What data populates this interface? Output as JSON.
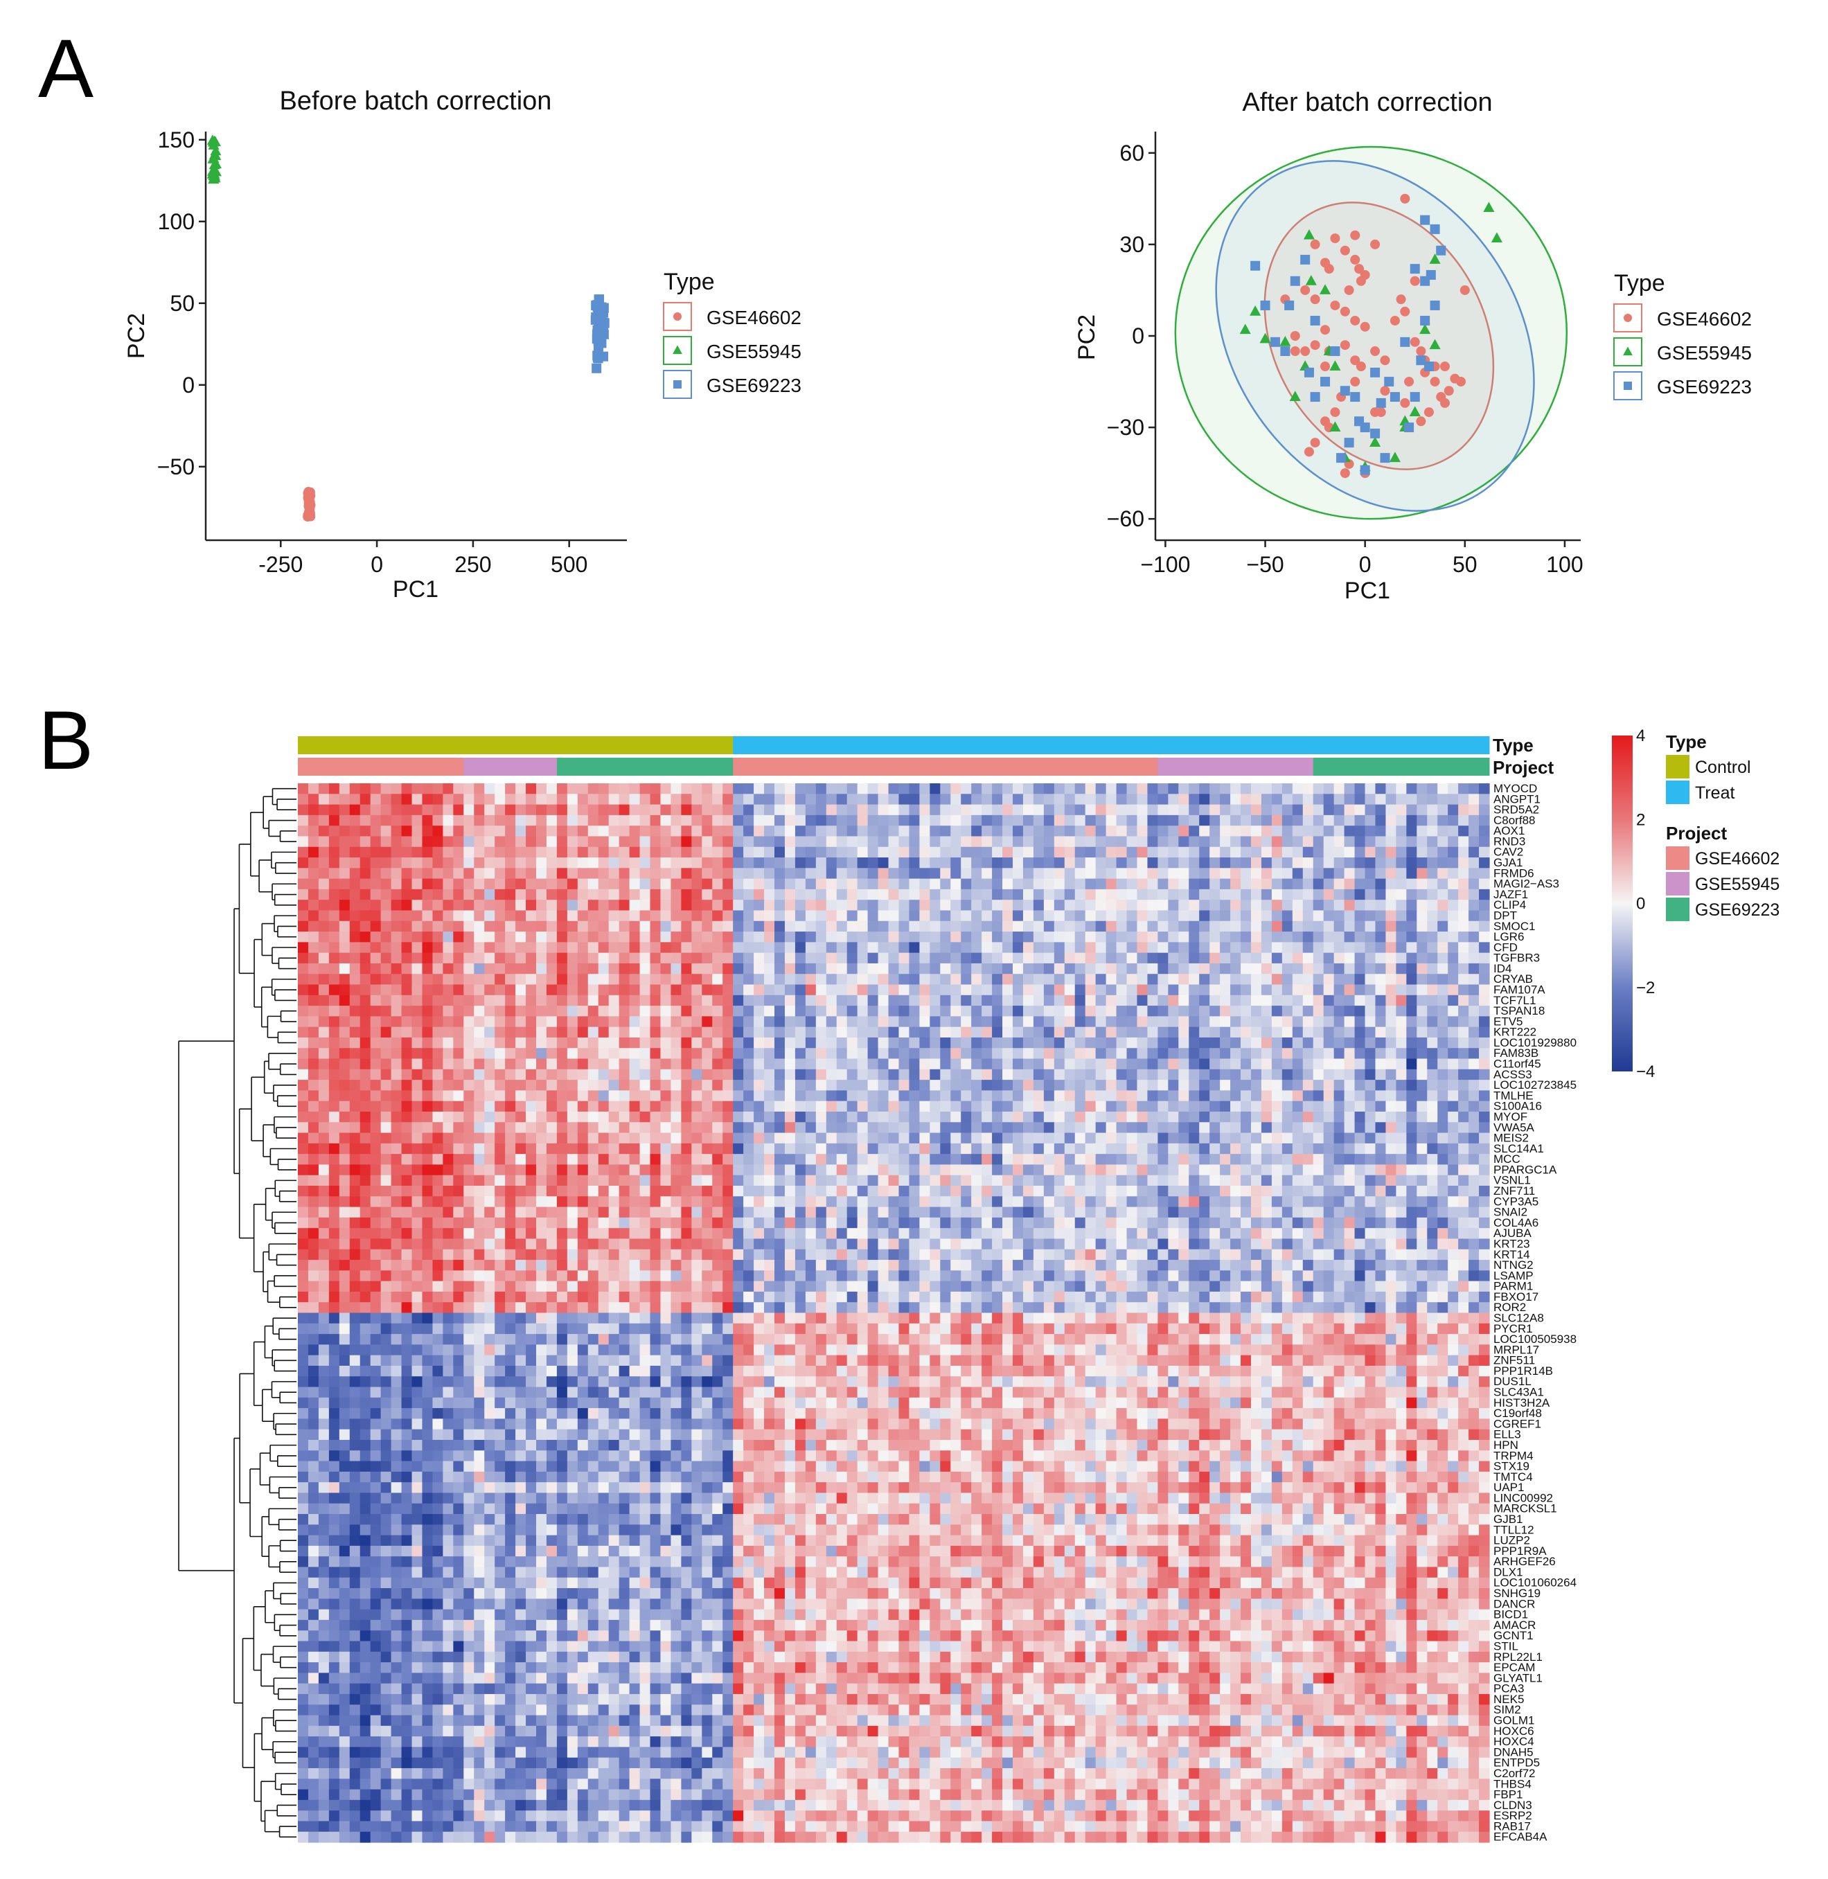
{
  "panels": {
    "a": "A",
    "b": "B"
  },
  "legend_type_title": "Type",
  "datasets": [
    {
      "name": "GSE46602",
      "color": "#E8796F",
      "shape": "circle"
    },
    {
      "name": "GSE55945",
      "color": "#2EAE3A",
      "shape": "triangle"
    },
    {
      "name": "GSE69223",
      "color": "#5B8FD0",
      "shape": "square"
    }
  ],
  "chart_data": [
    {
      "type": "scatter",
      "title": "Before batch correction",
      "xlabel": "PC1",
      "ylabel": "PC2",
      "xlim": [
        -445,
        650
      ],
      "ylim": [
        -95,
        155
      ],
      "xticks": [
        -250,
        0,
        250,
        500
      ],
      "xtick_labels": [
        "-250",
        "0",
        "250",
        "500"
      ],
      "yticks": [
        -50,
        0,
        50,
        100,
        150
      ],
      "ytick_labels": [
        "−50",
        "0",
        "50",
        "100",
        "150"
      ],
      "series": [
        {
          "name": "GSE46602",
          "x_range": [
            -180,
            -172
          ],
          "y_range": [
            -82,
            -65
          ],
          "n": 36
        },
        {
          "name": "GSE55945",
          "x_range": [
            -428,
            -418
          ],
          "y_range": [
            120,
            150
          ],
          "n": 21
        },
        {
          "name": "GSE69223",
          "x_range": [
            568,
            592
          ],
          "y_range": [
            10,
            53
          ],
          "n": 40
        }
      ]
    },
    {
      "type": "scatter",
      "title": "After batch correction",
      "xlabel": "PC1",
      "ylabel": "PC2",
      "xlim": [
        -105,
        108
      ],
      "ylim": [
        -67,
        67
      ],
      "xticks": [
        -100,
        -50,
        0,
        50,
        100
      ],
      "xtick_labels": [
        "−100",
        "−50",
        "0",
        "50",
        "100"
      ],
      "yticks": [
        -60,
        -30,
        0,
        30,
        60
      ],
      "ytick_labels": [
        "−60",
        "−30",
        "0",
        "30",
        "60"
      ],
      "series": [
        {
          "name": "GSE46602",
          "points": [
            [
              20,
              45
            ],
            [
              -25,
              30
            ],
            [
              -15,
              32
            ],
            [
              -10,
              28
            ],
            [
              -5,
              33
            ],
            [
              5,
              30
            ],
            [
              -18,
              22
            ],
            [
              -20,
              24
            ],
            [
              -5,
              25
            ],
            [
              -2,
              18
            ],
            [
              -8,
              15
            ],
            [
              0,
              20
            ],
            [
              -30,
              15
            ],
            [
              -25,
              12
            ],
            [
              -40,
              12
            ],
            [
              -15,
              10
            ],
            [
              -10,
              8
            ],
            [
              -5,
              5
            ],
            [
              0,
              3
            ],
            [
              -20,
              2
            ],
            [
              -25,
              -3
            ],
            [
              -30,
              -5
            ],
            [
              -35,
              0
            ],
            [
              -18,
              -5
            ],
            [
              -10,
              -3
            ],
            [
              -5,
              -8
            ],
            [
              -2,
              -10
            ],
            [
              5,
              -5
            ],
            [
              10,
              -8
            ],
            [
              15,
              5
            ],
            [
              20,
              8
            ],
            [
              25,
              -2
            ],
            [
              28,
              -5
            ],
            [
              30,
              -12
            ],
            [
              35,
              -15
            ],
            [
              40,
              -10
            ],
            [
              42,
              -18
            ],
            [
              45,
              -14
            ],
            [
              38,
              -20
            ],
            [
              32,
              -25
            ],
            [
              28,
              -28
            ],
            [
              20,
              -22
            ],
            [
              15,
              -20
            ],
            [
              10,
              -18
            ],
            [
              5,
              -25
            ],
            [
              -5,
              -15
            ],
            [
              -12,
              -20
            ],
            [
              -15,
              -25
            ],
            [
              -20,
              -28
            ],
            [
              -25,
              -35
            ],
            [
              -28,
              -38
            ],
            [
              -18,
              -30
            ],
            [
              0,
              -30
            ],
            [
              -10,
              -45
            ],
            [
              0,
              -45
            ],
            [
              -8,
              -42
            ],
            [
              50,
              15
            ],
            [
              48,
              -15
            ],
            [
              40,
              -22
            ],
            [
              35,
              -10
            ],
            [
              25,
              18
            ],
            [
              18,
              12
            ],
            [
              -35,
              -5
            ],
            [
              -20,
              -10
            ],
            [
              -3,
              22
            ],
            [
              8,
              -25
            ],
            [
              22,
              -15
            ],
            [
              30,
              -8
            ]
          ]
        },
        {
          "name": "GSE55945",
          "points": [
            [
              -60,
              2
            ],
            [
              -55,
              8
            ],
            [
              -50,
              -1
            ],
            [
              -28,
              33
            ],
            [
              -27,
              18
            ],
            [
              -20,
              15
            ],
            [
              -40,
              -2
            ],
            [
              -35,
              -20
            ],
            [
              -15,
              -30
            ],
            [
              5,
              -35
            ],
            [
              -10,
              -40
            ],
            [
              0,
              -43
            ],
            [
              15,
              -40
            ],
            [
              20,
              -30
            ],
            [
              25,
              -25
            ],
            [
              30,
              2
            ],
            [
              35,
              -3
            ],
            [
              62,
              42
            ],
            [
              66,
              32
            ],
            [
              35,
              25
            ],
            [
              -15,
              -10
            ],
            [
              -30,
              -10
            ],
            [
              -18,
              -5
            ],
            [
              20,
              -28
            ]
          ]
        },
        {
          "name": "GSE69223",
          "points": [
            [
              -55,
              23
            ],
            [
              -50,
              10
            ],
            [
              -45,
              -2
            ],
            [
              -40,
              -5
            ],
            [
              -38,
              10
            ],
            [
              -35,
              18
            ],
            [
              -30,
              25
            ],
            [
              -28,
              -12
            ],
            [
              -25,
              -20
            ],
            [
              -20,
              -15
            ],
            [
              -15,
              -5
            ],
            [
              -10,
              -18
            ],
            [
              -5,
              -20
            ],
            [
              -3,
              -28
            ],
            [
              0,
              -30
            ],
            [
              5,
              -32
            ],
            [
              8,
              -22
            ],
            [
              12,
              -15
            ],
            [
              10,
              -40
            ],
            [
              0,
              -44
            ],
            [
              25,
              -20
            ],
            [
              28,
              -8
            ],
            [
              30,
              5
            ],
            [
              32,
              -10
            ],
            [
              35,
              10
            ],
            [
              33,
              20
            ],
            [
              30,
              38
            ],
            [
              35,
              35
            ],
            [
              38,
              28
            ],
            [
              25,
              22
            ],
            [
              30,
              18
            ],
            [
              20,
              -2
            ],
            [
              15,
              -20
            ],
            [
              -8,
              -35
            ],
            [
              -12,
              -40
            ],
            [
              5,
              -12
            ],
            [
              -25,
              5
            ],
            [
              22,
              -30
            ]
          ]
        }
      ],
      "ellipses": [
        {
          "name": "GSE46602",
          "cx": 7,
          "cy": 0,
          "rx": 53,
          "ry": 46,
          "angle": -28
        },
        {
          "name": "GSE55945",
          "cx": 3,
          "cy": 1,
          "rx": 98,
          "ry": 61,
          "angle": 0
        },
        {
          "name": "GSE69223",
          "cx": 5,
          "cy": 0,
          "rx": 71,
          "ry": 62,
          "angle": -35
        }
      ]
    },
    {
      "type": "heatmap",
      "annotation_labels": {
        "type": "Type",
        "project": "Project"
      },
      "type_legend": [
        {
          "name": "Control",
          "color": "#B6BC0B"
        },
        {
          "name": "Treat",
          "color": "#2EBAF0"
        }
      ],
      "project_legend": [
        {
          "name": "GSE46602",
          "color": "#EC8A87"
        },
        {
          "name": "GSE55945",
          "color": "#CB93C9"
        },
        {
          "name": "GSE69223",
          "color": "#41B383"
        }
      ],
      "color_scale": {
        "ticks": [
          "4",
          "2",
          "0",
          "−2",
          "−4"
        ],
        "min": -4,
        "max": 4,
        "colors": [
          "#1F3A93",
          "#6B7EC4",
          "#F5F5F5",
          "#E8777A",
          "#E31A1C"
        ]
      },
      "column_groups": [
        {
          "type": "Control",
          "project": "GSE46602",
          "count": 16
        },
        {
          "type": "Control",
          "project": "GSE55945",
          "count": 9
        },
        {
          "type": "Control",
          "project": "GSE69223",
          "count": 17
        },
        {
          "type": "Treat",
          "project": "GSE46602",
          "count": 41
        },
        {
          "type": "Treat",
          "project": "GSE55945",
          "count": 15
        },
        {
          "type": "Treat",
          "project": "GSE69223",
          "count": 17
        }
      ],
      "genes_up_in_control_count": 50,
      "genes": [
        "MYOCD",
        "ANGPT1",
        "SRD5A2",
        "C8orf88",
        "AOX1",
        "RND3",
        "CAV2",
        "GJA1",
        "FRMD6",
        "MAGI2−AS3",
        "JAZF1",
        "CLIP4",
        "DPT",
        "SMOC1",
        "LGR6",
        "CFD",
        "TGFBR3",
        "ID4",
        "CRYAB",
        "FAM107A",
        "TCF7L1",
        "TSPAN18",
        "ETV5",
        "KRT222",
        "LOC101929880",
        "FAM83B",
        "C11orf45",
        "ACSS3",
        "LOC102723845",
        "TMLHE",
        "S100A16",
        "MYOF",
        "VWA5A",
        "MEIS2",
        "SLC14A1",
        "MCC",
        "PPARGC1A",
        "VSNL1",
        "ZNF711",
        "CYP3A5",
        "SNAI2",
        "COL4A6",
        "AJUBA",
        "KRT23",
        "KRT14",
        "NTNG2",
        "LSAMP",
        "PARM1",
        "FBXO17",
        "ROR2",
        "SLC12A8",
        "PYCR1",
        "LOC100505938",
        "MRPL17",
        "ZNF511",
        "PPP1R14B",
        "DUS1L",
        "SLC43A1",
        "HIST3H2A",
        "C19orf48",
        "CGREF1",
        "ELL3",
        "HPN",
        "TRPM4",
        "STX19",
        "TMTC4",
        "UAP1",
        "LINC00992",
        "MARCKSL1",
        "GJB1",
        "TTLL12",
        "LUZP2",
        "PPP1R9A",
        "ARHGEF26",
        "DLX1",
        "LOC101060264",
        "SNHG19",
        "DANCR",
        "BICD1",
        "AMACR",
        "GCNT1",
        "STIL",
        "RPL22L1",
        "EPCAM",
        "GLYATL1",
        "PCA3",
        "NEK5",
        "SIM2",
        "GOLM1",
        "HOXC6",
        "HOXC4",
        "DNAH5",
        "ENTPD5",
        "C2orf72",
        "THBS4",
        "FBP1",
        "CLDN3",
        "ESRP2",
        "RAB17",
        "EFCAB4A"
      ]
    }
  ]
}
